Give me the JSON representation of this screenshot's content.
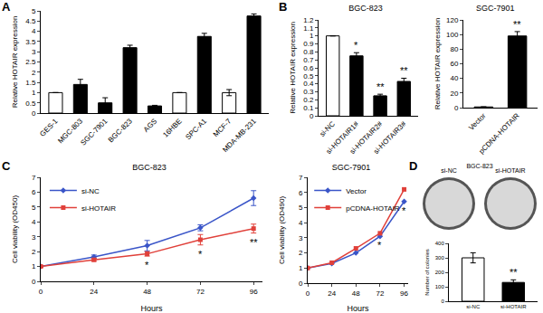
{
  "chart_data": [
    {
      "type": "bar",
      "panel": "A",
      "ylabel": "Relative HOTAIR expression",
      "categories": [
        "GES-1",
        "MGC-803",
        "SGC-7901",
        "BGC-823",
        "AGS",
        "16HBE",
        "SPC-A1",
        "MCF-7",
        "MDA-MB-231"
      ],
      "values": [
        1,
        1.4,
        0.5,
        3.2,
        0.35,
        1,
        3.75,
        1,
        4.75
      ],
      "errors": [
        0,
        0.25,
        0.25,
        0.12,
        0.03,
        0,
        0.15,
        0.15,
        0.1
      ],
      "colors": [
        "white",
        "black",
        "black",
        "black",
        "black",
        "white",
        "black",
        "white",
        "black"
      ],
      "ylim": [
        0,
        5
      ],
      "yticks": [
        0,
        0.5,
        1,
        1.5,
        2,
        2.5,
        3,
        3.5,
        4,
        4.5,
        5
      ],
      "grid": false
    },
    {
      "type": "bar",
      "panel": "B",
      "title": "BGC-823",
      "ylabel": "Relative HOTAIR expression",
      "categories": [
        "si-NC",
        "si-HOTAIR1#",
        "si-HOTAIR2#",
        "si-HOTAIR3#"
      ],
      "values": [
        1,
        0.75,
        0.25,
        0.43
      ],
      "errors": [
        0,
        0.04,
        0.02,
        0.04
      ],
      "significance": [
        null,
        "*",
        "**",
        "**"
      ],
      "colors": [
        "white",
        "black",
        "black",
        "black"
      ],
      "ylim": [
        0,
        1.2
      ],
      "yticks": [
        0,
        0.1,
        0.2,
        0.3,
        0.4,
        0.5,
        0.6,
        0.7,
        0.8,
        0.9,
        1,
        1.1,
        1.2
      ],
      "grid": false
    },
    {
      "type": "bar",
      "title": "SGC-7901",
      "ylabel": "Relative HOTAIR expression",
      "categories": [
        "Vector",
        "pCDNA-HOTAIR"
      ],
      "values": [
        1,
        98
      ],
      "errors": [
        0,
        6
      ],
      "significance": [
        null,
        "**"
      ],
      "colors": [
        "white",
        "black"
      ],
      "ylim": [
        0,
        120
      ],
      "yticks": [
        0,
        20,
        40,
        60,
        80,
        100,
        120
      ],
      "grid": false
    },
    {
      "type": "line",
      "panel": "C",
      "title": "BGC-823",
      "xlabel": "Hours",
      "ylabel": "Cell viability (OD450)",
      "x": [
        0,
        24,
        48,
        72,
        96
      ],
      "series": [
        {
          "name": "si-NC",
          "color": "#3a55c8",
          "marker": "diamond",
          "values": [
            1,
            1.65,
            2.4,
            3.6,
            5.6
          ],
          "errors": [
            0.05,
            0.12,
            0.35,
            0.2,
            0.5
          ]
        },
        {
          "name": "si-HOTAIR",
          "color": "#e0403a",
          "marker": "square",
          "values": [
            1,
            1.45,
            1.85,
            2.8,
            3.55
          ],
          "errors": [
            0.05,
            0.1,
            0.15,
            0.35,
            0.3
          ]
        }
      ],
      "significance": [
        null,
        null,
        "*",
        "*",
        "**"
      ],
      "xlim": [
        0,
        100
      ],
      "xticks": [
        0,
        24,
        48,
        72,
        96
      ],
      "ylim": [
        0,
        7
      ],
      "yticks": [
        0,
        1,
        2,
        3,
        4,
        5,
        6,
        7
      ],
      "legend": "upper left",
      "grid": false
    },
    {
      "type": "line",
      "title": "SGC-7901",
      "xlabel": "Hours",
      "ylabel": "Cell viability (OD490)",
      "x": [
        0,
        24,
        48,
        72,
        96
      ],
      "series": [
        {
          "name": "Vector",
          "color": "#3a55c8",
          "marker": "diamond",
          "values": [
            1,
            1.3,
            2.0,
            3.1,
            5.4
          ]
        },
        {
          "name": "pCDNA-HOTAIR",
          "color": "#e0403a",
          "marker": "square",
          "values": [
            1,
            1.35,
            2.3,
            3.3,
            6.2
          ]
        }
      ],
      "significance": [
        null,
        null,
        null,
        "*",
        "*"
      ],
      "xlim": [
        0,
        100
      ],
      "xticks": [
        0,
        24,
        48,
        72,
        96
      ],
      "ylim": [
        0,
        7
      ],
      "yticks": [
        0,
        1,
        2,
        3,
        4,
        5,
        6,
        7
      ],
      "legend": "upper left",
      "grid": false
    },
    {
      "type": "bar",
      "panel": "D",
      "title": "BGC-823",
      "image_labels": [
        "si-NC",
        "si-HOTAIR"
      ],
      "ylabel": "Number of colonies",
      "categories": [
        "si-NC",
        "si-HOTAIR"
      ],
      "values": [
        300,
        130
      ],
      "errors": [
        35,
        18
      ],
      "significance": [
        null,
        "**"
      ],
      "colors": [
        "white",
        "black"
      ],
      "ylim": [
        0,
        400
      ],
      "yticks": [
        0,
        100,
        200,
        300,
        400
      ],
      "grid": false
    }
  ]
}
